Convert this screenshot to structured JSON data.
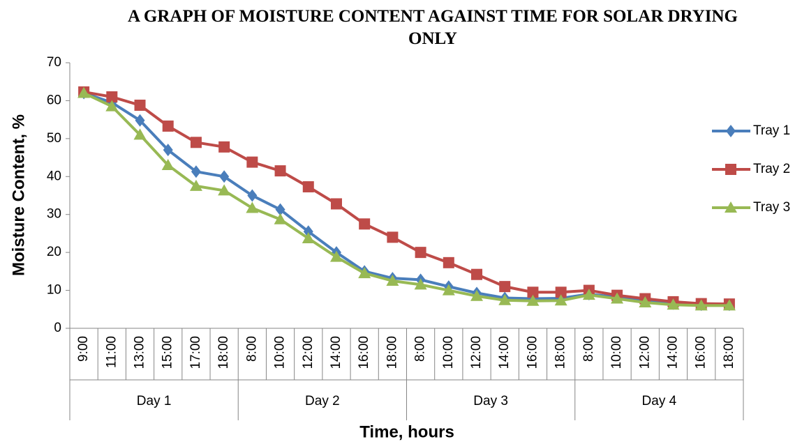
{
  "chart_data": {
    "type": "line",
    "title": "A GRAPH OF MOISTURE CONTENT AGAINST TIME FOR SOLAR DRYING ONLY",
    "x_label": "Time, hours",
    "y_label": "Moisture Content, %",
    "categories": [
      "9:00",
      "11:00",
      "13:00",
      "15:00",
      "17:00",
      "18:00",
      "8:00",
      "10:00",
      "12:00",
      "14:00",
      "16:00",
      "18:00",
      "8:00",
      "10:00",
      "12:00",
      "14:00",
      "16:00",
      "18:00",
      "8:00",
      "10:00",
      "12:00",
      "14:00",
      "16:00",
      "18:00"
    ],
    "category_groups": [
      "Day 1",
      "Day 2",
      "Day 3",
      "Day 4"
    ],
    "series": [
      {
        "name": "Tray 1",
        "color": "#4a7ebb",
        "marker": "diamond",
        "values": [
          62,
          59.5,
          54.8,
          47,
          41.3,
          40,
          35,
          31.3,
          25.5,
          20,
          15,
          13.2,
          12.8,
          11,
          9.3,
          8,
          7.8,
          7.9,
          9,
          8.2,
          7.3,
          6.5,
          6.2,
          6.2
        ]
      },
      {
        "name": "Tray 2",
        "color": "#be4b48",
        "marker": "square",
        "values": [
          62.3,
          61,
          58.8,
          53.3,
          49,
          47.8,
          43.8,
          41.5,
          37.3,
          32.8,
          27.5,
          24,
          20,
          17.3,
          14.2,
          11,
          9.5,
          9.5,
          10,
          8.7,
          7.8,
          7,
          6.5,
          6.4
        ]
      },
      {
        "name": "Tray 3",
        "color": "#98b954",
        "marker": "triangle",
        "values": [
          62,
          58.5,
          51,
          43,
          37.5,
          36.3,
          31.7,
          28.7,
          23.7,
          18.8,
          14.5,
          12.5,
          11.5,
          10,
          8.5,
          7.4,
          7.2,
          7.3,
          8.8,
          7.8,
          6.8,
          6.2,
          6,
          6
        ]
      }
    ],
    "ylim": [
      0,
      70
    ],
    "yticks": [
      0,
      10,
      20,
      30,
      40,
      50,
      60,
      70
    ],
    "grid": false,
    "legend": "right"
  }
}
